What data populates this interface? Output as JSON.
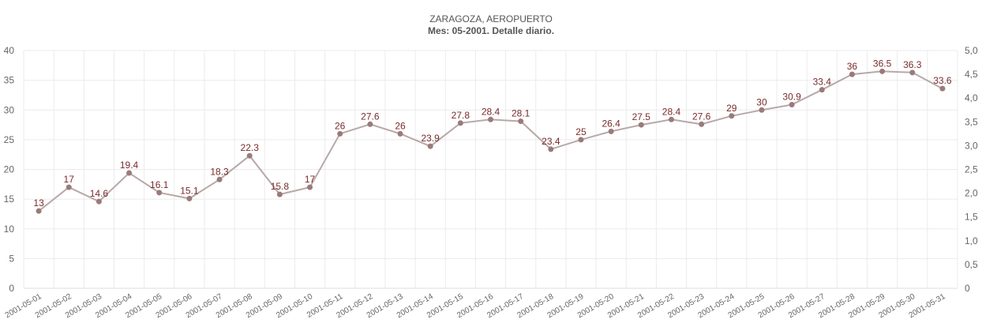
{
  "chart_data": {
    "type": "line",
    "title": "ZARAGOZA, AEROPUERTO",
    "subtitle": "Mes: 05-2001. Detalle diario.",
    "categories": [
      "2001-05-01",
      "2001-05-02",
      "2001-05-03",
      "2001-05-04",
      "2001-05-05",
      "2001-05-06",
      "2001-05-07",
      "2001-05-08",
      "2001-05-09",
      "2001-05-10",
      "2001-05-11",
      "2001-05-12",
      "2001-05-13",
      "2001-05-14",
      "2001-05-15",
      "2001-05-16",
      "2001-05-17",
      "2001-05-18",
      "2001-05-19",
      "2001-05-20",
      "2001-05-21",
      "2001-05-22",
      "2001-05-23",
      "2001-05-24",
      "2001-05-25",
      "2001-05-26",
      "2001-05-27",
      "2001-05-28",
      "2001-05-29",
      "2001-05-30",
      "2001-05-31"
    ],
    "series": [
      {
        "values": [
          13,
          17,
          14.6,
          19.4,
          16.1,
          15.1,
          18.3,
          22.3,
          15.8,
          17,
          26,
          27.6,
          26,
          23.9,
          27.8,
          28.4,
          28.1,
          23.4,
          25,
          26.4,
          27.5,
          28.4,
          27.6,
          29,
          30,
          30.9,
          33.4,
          36,
          36.5,
          36.3,
          33.6
        ],
        "labels": [
          "13",
          "17",
          "14.6",
          "19.4",
          "16.1",
          "15.1",
          "18.3",
          "22.3",
          "15.8",
          "17",
          "26",
          "27.6",
          "26",
          "23.9",
          "27.8",
          "28.4",
          "28.1",
          "23.4",
          "25",
          "26.4",
          "27.5",
          "28.4",
          "27.6",
          "29",
          "30",
          "30.9",
          "33.4",
          "36",
          "36.5",
          "36.3",
          "33.6"
        ],
        "color": "#b8a8a8",
        "marker_color": "#9a7a7a",
        "label_color": "#7a2a2a"
      }
    ],
    "ylim": [
      0,
      40
    ],
    "y_ticks": [
      "0",
      "5",
      "10",
      "15",
      "20",
      "25",
      "30",
      "35",
      "40"
    ],
    "y2lim": [
      0,
      5
    ],
    "y2_ticks": [
      "0",
      "0,5",
      "1,0",
      "1,5",
      "2,0",
      "2,5",
      "3,0",
      "3,5",
      "4,0",
      "4,5",
      "5,0"
    ],
    "grid": true,
    "legend": "none"
  }
}
